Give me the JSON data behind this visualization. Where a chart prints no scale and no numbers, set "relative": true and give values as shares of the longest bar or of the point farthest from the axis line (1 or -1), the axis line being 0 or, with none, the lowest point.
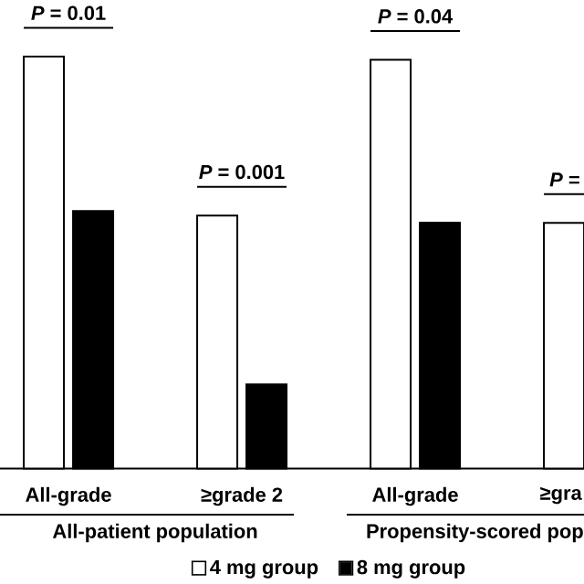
{
  "chart_data": {
    "type": "bar",
    "relative": true,
    "categories": [
      "All-grade",
      "≥grade 2",
      "All-grade",
      "≥gra"
    ],
    "series": [
      {
        "name": "4 mg group",
        "color": "#ffffff",
        "values": [
          1,
          0.614,
          0.992,
          0.596
        ]
      },
      {
        "name": "8 mg group",
        "color": "#000000",
        "values": [
          0.625,
          0.204,
          0.597,
          null
        ]
      }
    ],
    "annotations": [
      "*P* = 0.01",
      "*P* = 0.001",
      "*P* = 0.04",
      "*P* =",
      "All-patient population",
      "Propensity-scored pop"
    ],
    "legend": "bottom"
  }
}
